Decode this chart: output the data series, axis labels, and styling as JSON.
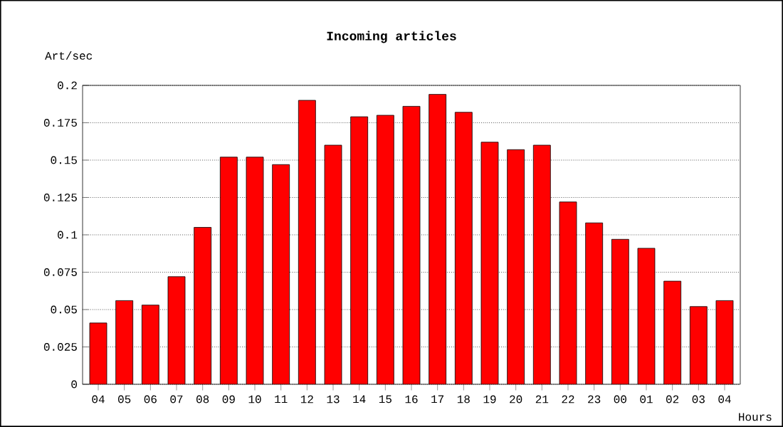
{
  "chart_data": {
    "type": "bar",
    "title": "Incoming articles",
    "xlabel": "Hours",
    "ylabel": "Art/sec",
    "categories": [
      "04",
      "05",
      "06",
      "07",
      "08",
      "09",
      "10",
      "11",
      "12",
      "13",
      "14",
      "15",
      "16",
      "17",
      "18",
      "19",
      "20",
      "21",
      "22",
      "23",
      "00",
      "01",
      "02",
      "03",
      "04"
    ],
    "values": [
      0.041,
      0.056,
      0.053,
      0.072,
      0.105,
      0.152,
      0.152,
      0.147,
      0.19,
      0.16,
      0.179,
      0.18,
      0.186,
      0.194,
      0.182,
      0.162,
      0.157,
      0.16,
      0.122,
      0.108,
      0.097,
      0.091,
      0.069,
      0.052,
      0.056
    ],
    "color": "#ff0000",
    "ylim": [
      0,
      0.2
    ],
    "yticks": [
      0,
      0.025,
      0.05,
      0.075,
      0.1,
      0.125,
      0.15,
      0.175,
      0.2
    ],
    "grid": "y"
  }
}
